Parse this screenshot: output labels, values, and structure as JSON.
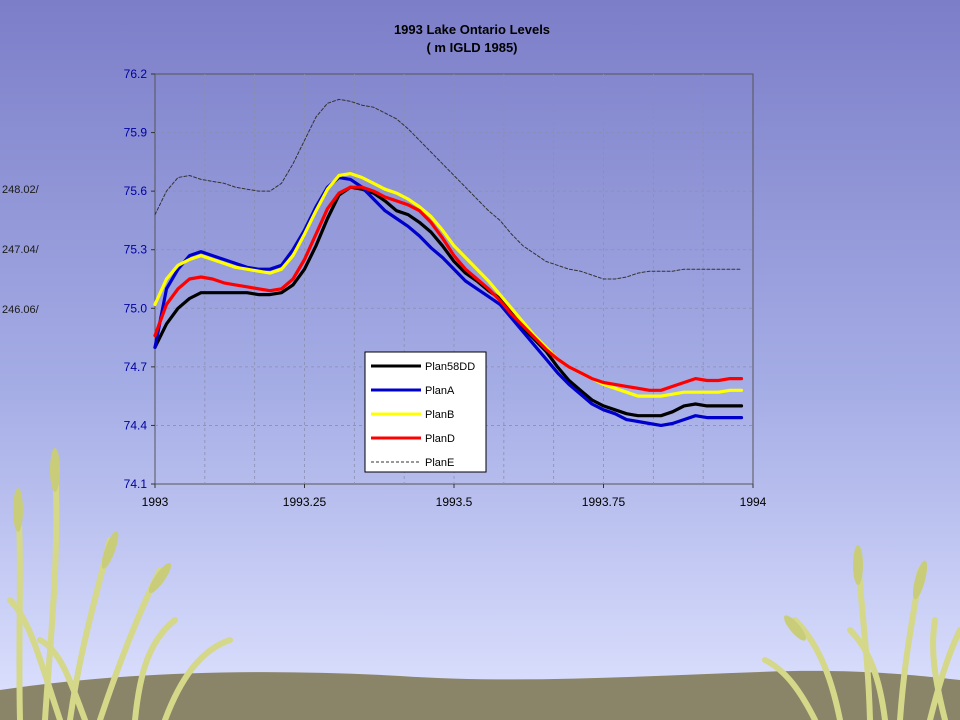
{
  "side_labels": [
    "248.02/",
    "247.04/",
    "246.06/"
  ],
  "colors": {
    "Plan58DD": "#000000",
    "PlanA": "#0000cc",
    "PlanB": "#ffff00",
    "PlanD": "#ff0000",
    "PlanE": "#333333",
    "background_top": "#7f7fc8",
    "background_bottom": "#d9dcff",
    "ground": "#8a8468"
  },
  "chart_data": {
    "type": "line",
    "title": "1993 Lake Ontario Levels",
    "subtitle": "( m  IGLD 1985)",
    "xlabel": "",
    "ylabel": "",
    "xlim": [
      1993,
      1994
    ],
    "ylim": [
      74.1,
      76.2
    ],
    "x_ticks": [
      "1993",
      "1993.25",
      "1993.5",
      "1993.75",
      "1994"
    ],
    "y_ticks": [
      "74.1",
      "74.4",
      "74.7",
      "75.0",
      "75.3",
      "75.6",
      "75.9",
      "76.2"
    ],
    "grid": true,
    "legend_position": "center-right",
    "x": [
      1993.0,
      1993.0192,
      1993.0385,
      1993.0577,
      1993.0769,
      1993.0962,
      1993.1154,
      1993.1346,
      1993.1538,
      1993.1731,
      1993.1923,
      1993.2115,
      1993.2308,
      1993.25,
      1993.2692,
      1993.2885,
      1993.3077,
      1993.3269,
      1993.3462,
      1993.3654,
      1993.3846,
      1993.4038,
      1993.4231,
      1993.4423,
      1993.4615,
      1993.4808,
      1993.5,
      1993.5192,
      1993.5385,
      1993.5577,
      1993.5769,
      1993.5962,
      1993.6154,
      1993.6346,
      1993.6538,
      1993.6731,
      1993.6923,
      1993.7115,
      1993.7308,
      1993.75,
      1993.7692,
      1993.7885,
      1993.8077,
      1993.8269,
      1993.8462,
      1993.8654,
      1993.8846,
      1993.9038,
      1993.9231,
      1993.9423,
      1993.9615,
      1993.9808
    ],
    "series": [
      {
        "name": "Plan58DD",
        "style": "solid",
        "values": [
          74.8,
          74.92,
          75.0,
          75.05,
          75.08,
          75.08,
          75.08,
          75.08,
          75.08,
          75.07,
          75.07,
          75.08,
          75.12,
          75.2,
          75.32,
          75.46,
          75.58,
          75.62,
          75.61,
          75.59,
          75.55,
          75.5,
          75.48,
          75.44,
          75.39,
          75.32,
          75.24,
          75.18,
          75.14,
          75.09,
          75.05,
          74.98,
          74.9,
          74.84,
          74.78,
          74.7,
          74.63,
          74.58,
          74.53,
          74.5,
          74.48,
          74.46,
          74.45,
          74.45,
          74.45,
          74.47,
          74.5,
          74.51,
          74.5,
          74.5,
          74.5,
          74.5
        ]
      },
      {
        "name": "PlanA",
        "style": "solid",
        "values": [
          74.8,
          75.1,
          75.2,
          75.27,
          75.29,
          75.27,
          75.25,
          75.23,
          75.21,
          75.2,
          75.2,
          75.22,
          75.3,
          75.4,
          75.52,
          75.62,
          75.67,
          75.66,
          75.62,
          75.56,
          75.5,
          75.46,
          75.42,
          75.37,
          75.31,
          75.26,
          75.2,
          75.14,
          75.1,
          75.06,
          75.02,
          74.95,
          74.88,
          74.81,
          74.74,
          74.67,
          74.61,
          74.56,
          74.51,
          74.48,
          74.46,
          74.43,
          74.42,
          74.41,
          74.4,
          74.41,
          74.43,
          74.45,
          74.44,
          74.44,
          74.44,
          74.44
        ]
      },
      {
        "name": "PlanB",
        "style": "solid",
        "values": [
          75.02,
          75.15,
          75.22,
          75.25,
          75.27,
          75.25,
          75.23,
          75.21,
          75.2,
          75.19,
          75.18,
          75.2,
          75.27,
          75.38,
          75.5,
          75.61,
          75.68,
          75.69,
          75.67,
          75.64,
          75.61,
          75.59,
          75.56,
          75.52,
          75.47,
          75.4,
          75.32,
          75.26,
          75.2,
          75.14,
          75.07,
          75.0,
          74.93,
          74.86,
          74.8,
          74.74,
          74.7,
          74.67,
          74.64,
          74.61,
          74.59,
          74.57,
          74.55,
          74.55,
          74.55,
          74.56,
          74.57,
          74.57,
          74.57,
          74.57,
          74.58,
          74.58
        ]
      },
      {
        "name": "PlanD",
        "style": "solid",
        "values": [
          74.86,
          75.02,
          75.1,
          75.15,
          75.16,
          75.15,
          75.13,
          75.12,
          75.11,
          75.1,
          75.09,
          75.1,
          75.15,
          75.25,
          75.38,
          75.51,
          75.59,
          75.62,
          75.62,
          75.6,
          75.57,
          75.55,
          75.53,
          75.5,
          75.44,
          75.36,
          75.27,
          75.2,
          75.15,
          75.1,
          75.04,
          74.97,
          74.91,
          74.85,
          74.79,
          74.74,
          74.7,
          74.67,
          74.64,
          74.62,
          74.61,
          74.6,
          74.59,
          74.58,
          74.58,
          74.6,
          74.62,
          74.64,
          74.63,
          74.63,
          74.64,
          74.64
        ]
      },
      {
        "name": "PlanE",
        "style": "dotted",
        "values": [
          75.48,
          75.6,
          75.67,
          75.68,
          75.66,
          75.65,
          75.64,
          75.62,
          75.61,
          75.6,
          75.6,
          75.64,
          75.74,
          75.86,
          75.98,
          76.05,
          76.07,
          76.06,
          76.04,
          76.03,
          76.0,
          75.97,
          75.92,
          75.86,
          75.8,
          75.74,
          75.68,
          75.62,
          75.56,
          75.5,
          75.45,
          75.38,
          75.32,
          75.28,
          75.24,
          75.22,
          75.2,
          75.19,
          75.17,
          75.15,
          75.15,
          75.16,
          75.18,
          75.19,
          75.19,
          75.19,
          75.2,
          75.2,
          75.2,
          75.2,
          75.2,
          75.2
        ]
      }
    ]
  }
}
